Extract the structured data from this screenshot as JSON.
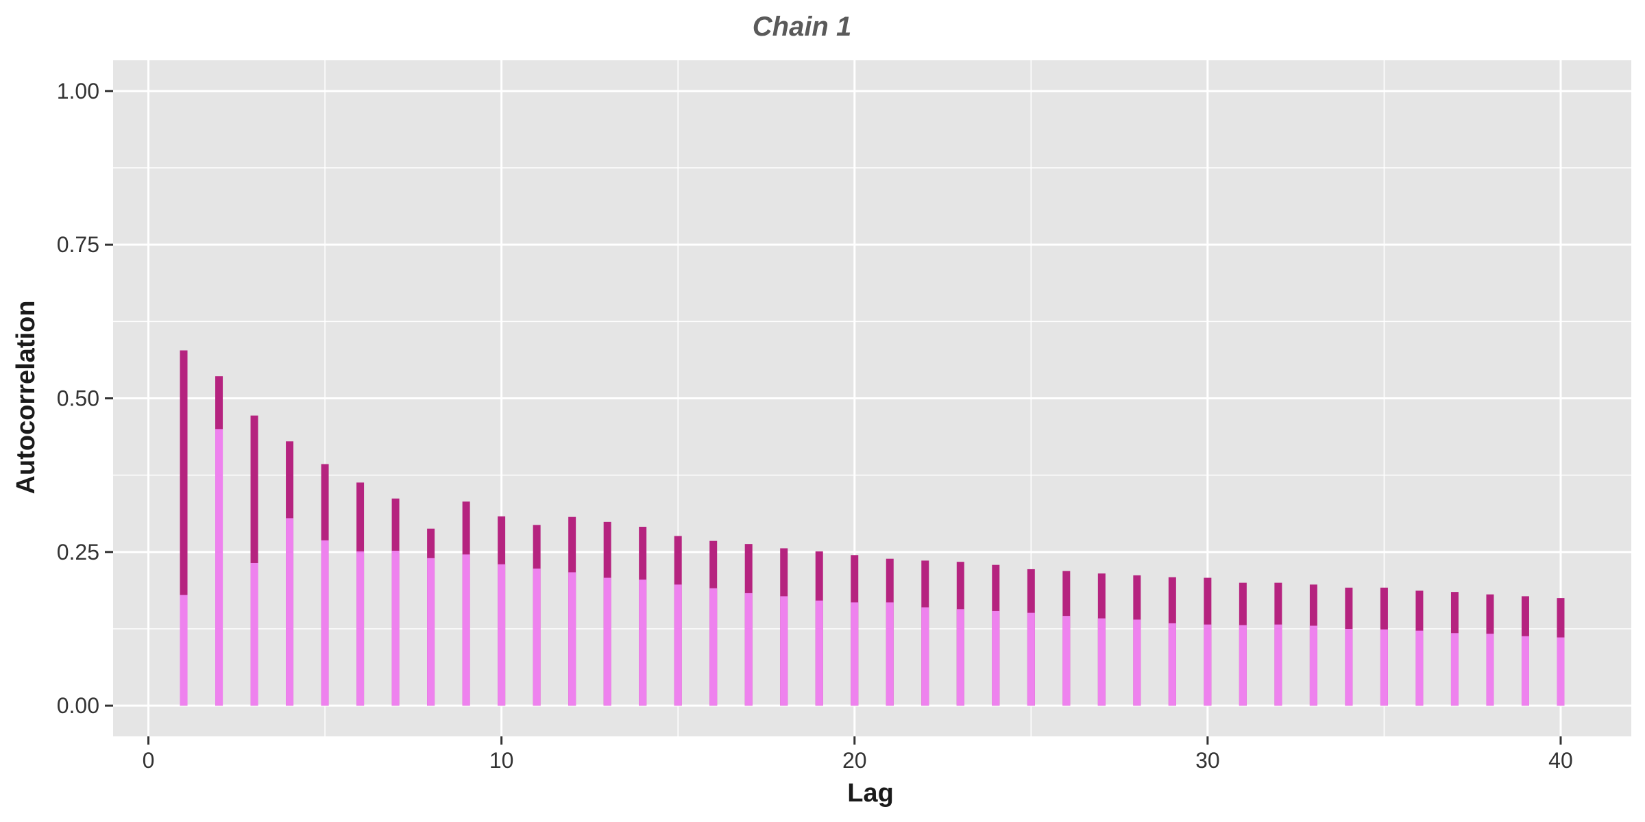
{
  "chart_data": {
    "type": "bar",
    "title": "Chain 1",
    "xlabel": "Lag",
    "ylabel": "Autocorrelation",
    "xlim": [
      -1,
      42
    ],
    "ylim": [
      -0.05,
      1.05
    ],
    "x_ticks": [
      0,
      10,
      20,
      30,
      40
    ],
    "x_tick_labels": [
      "0",
      "10",
      "20",
      "30",
      "40"
    ],
    "y_ticks": [
      0,
      0.25,
      0.5,
      0.75,
      1.0
    ],
    "y_tick_labels": [
      "0.00",
      "0.25",
      "0.50",
      "0.75",
      "1.00"
    ],
    "grid": true,
    "legend": "none",
    "colors": {
      "panel_background": "#e5e5e5",
      "grid_line": "#ffffff",
      "dark_series": "#b5237f",
      "light_series": "#ee82ee"
    },
    "lags": [
      1,
      2,
      3,
      4,
      5,
      6,
      7,
      8,
      9,
      10,
      11,
      12,
      13,
      14,
      15,
      16,
      17,
      18,
      19,
      20,
      21,
      22,
      23,
      24,
      25,
      26,
      27,
      28,
      29,
      30,
      31,
      32,
      33,
      34,
      35,
      36,
      37,
      38,
      39,
      40
    ],
    "series": [
      {
        "color": "#b5237f",
        "values": [
          0.578,
          0.536,
          0.472,
          0.43,
          0.393,
          0.363,
          0.337,
          0.288,
          0.332,
          0.308,
          0.294,
          0.307,
          0.299,
          0.291,
          0.276,
          0.268,
          0.263,
          0.256,
          0.251,
          0.245,
          0.239,
          0.236,
          0.234,
          0.229,
          0.222,
          0.219,
          0.215,
          0.212,
          0.209,
          0.208,
          0.2,
          0.2,
          0.197,
          0.192,
          0.192,
          0.187,
          0.185,
          0.181,
          0.178,
          0.175
        ]
      },
      {
        "color": "#ee82ee",
        "values": [
          0.18,
          0.45,
          0.232,
          0.305,
          0.269,
          0.251,
          0.252,
          0.24,
          0.246,
          0.23,
          0.223,
          0.217,
          0.208,
          0.205,
          0.197,
          0.191,
          0.183,
          0.178,
          0.171,
          0.168,
          0.168,
          0.16,
          0.157,
          0.154,
          0.151,
          0.146,
          0.142,
          0.14,
          0.134,
          0.132,
          0.131,
          0.132,
          0.13,
          0.125,
          0.124,
          0.122,
          0.118,
          0.117,
          0.113,
          0.111
        ]
      }
    ]
  }
}
